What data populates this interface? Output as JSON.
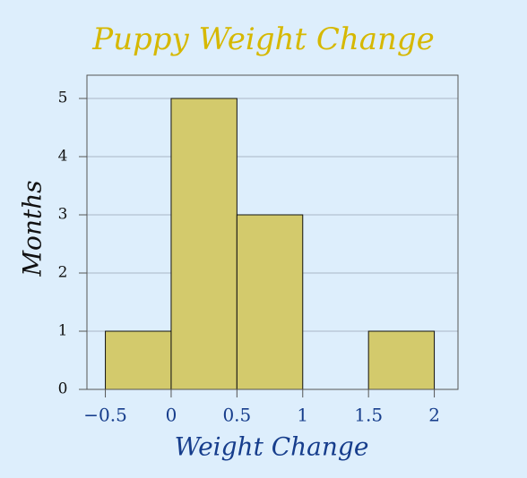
{
  "chart_data": {
    "type": "histogram",
    "title": "Puppy Weight Change",
    "x_label": "Weight Change",
    "y_label": "Months",
    "bins": [
      -0.5,
      0,
      0.5,
      1,
      1.5,
      2
    ],
    "values": [
      1,
      5,
      3,
      0,
      1
    ],
    "color": "#d3ca6c",
    "xlim": [
      -0.64,
      2.18
    ],
    "ylim": [
      0,
      5.4
    ],
    "xticks": [
      {
        "value": -0.5,
        "label": "−0.5"
      },
      0,
      0.5,
      1,
      1.5,
      2
    ],
    "yticks": [
      0,
      1,
      2,
      3,
      4,
      5
    ],
    "grid": true
  }
}
